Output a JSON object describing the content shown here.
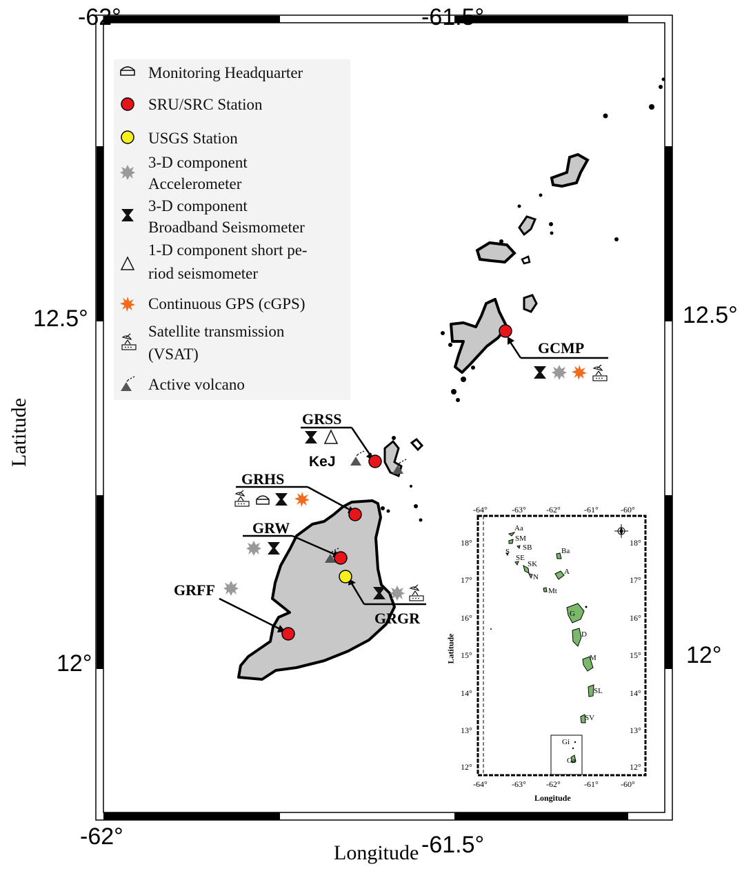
{
  "axes": {
    "x_ticks": [
      "-62°",
      "-61.5°"
    ],
    "y_ticks": [
      "12.5°",
      "12°"
    ],
    "xlabel": "Longitude",
    "ylabel": "Latitude"
  },
  "legend": {
    "items": [
      {
        "icon": "house-outline",
        "label": "Monitoring Headquarter"
      },
      {
        "icon": "red-circle",
        "label": "SRU/SRC Station"
      },
      {
        "icon": "yellow-circle",
        "label": "USGS Station"
      },
      {
        "icon": "gray-starburst",
        "label": "3-D component",
        "label2": "Accelerometer"
      },
      {
        "icon": "black-hourglass",
        "label": "3-D component",
        "label2": "Broadband Seismometer"
      },
      {
        "icon": "open-triangle",
        "label": "1-D component short pe-",
        "label2": "riod seismometer"
      },
      {
        "icon": "orange-star",
        "label": "Continuous GPS  (cGPS)"
      },
      {
        "icon": "satellite-dish",
        "label": "Satellite transmission",
        "label2": "(VSAT)"
      },
      {
        "icon": "volcano-triangle",
        "label": "Active volcano"
      }
    ]
  },
  "stations": {
    "gcmp": "GCMP",
    "grss": "GRSS",
    "kej": "KeJ",
    "grhs": "GRHS",
    "grw": "GRW",
    "grff": "GRFF",
    "grgr": "GRGR"
  },
  "inset": {
    "x_ticks": [
      "-64°",
      "-63°",
      "-62°",
      "-61°",
      "-60°"
    ],
    "y_ticks": [
      "18°",
      "17°",
      "16°",
      "15°",
      "14°",
      "13°",
      "12°"
    ],
    "xlabel": "Longitude",
    "ylabel": "Latitude",
    "islands": [
      "Aa",
      "SM",
      "SB",
      "S",
      "SE",
      "SK",
      "N",
      "Ba",
      "A",
      "Mt",
      "G",
      "D",
      "M",
      "SL",
      "SV",
      "Gi",
      "Ga"
    ]
  },
  "colors": {
    "station_red": "#e8141b",
    "usgs_yellow": "#f7ef1c",
    "accelerometer_gray": "#9a9a9a",
    "cgps_orange": "#f26a1b",
    "land_gray": "#c8c8c8",
    "inset_green": "#7ab86a"
  }
}
